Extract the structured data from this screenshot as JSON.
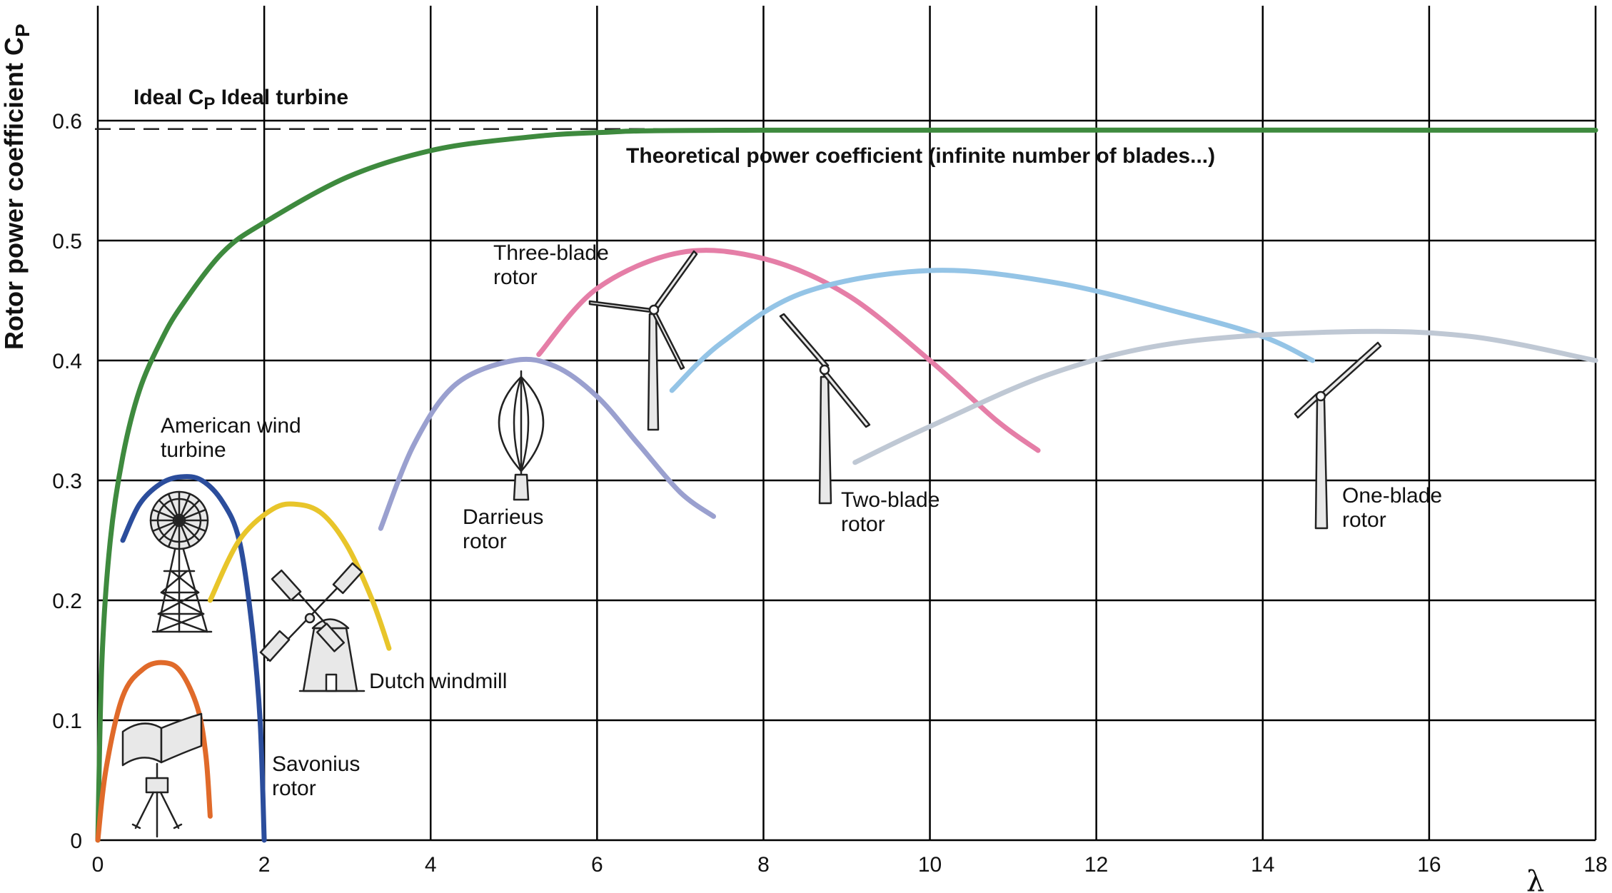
{
  "chart_data": {
    "type": "line",
    "ylabel": "Rotor power coefficient C",
    "ylabel_sub": "P",
    "xlabel": "λ",
    "xlim": [
      0,
      18
    ],
    "ylim": [
      0,
      0.6
    ],
    "xticks": [
      "0",
      "2",
      "4",
      "6",
      "8",
      "10",
      "12",
      "14",
      "16",
      "18"
    ],
    "yticks": [
      "0",
      "0.1",
      "0.2",
      "0.3",
      "0.4",
      "0.5",
      "0.6"
    ],
    "grid": true,
    "ideal_cp": 0.593,
    "ideal_label": {
      "a": "Ideal C",
      "sub": "P",
      "b": " Ideal turbine"
    },
    "series": [
      {
        "name": "Theoretical power coefficient (infinite number of blades...)",
        "color": "#3e8a3e",
        "points": [
          [
            0,
            0
          ],
          [
            0.05,
            0.15
          ],
          [
            0.15,
            0.25
          ],
          [
            0.3,
            0.32
          ],
          [
            0.5,
            0.375
          ],
          [
            0.75,
            0.415
          ],
          [
            1,
            0.445
          ],
          [
            1.5,
            0.49
          ],
          [
            2,
            0.515
          ],
          [
            3,
            0.553
          ],
          [
            4,
            0.575
          ],
          [
            5,
            0.585
          ],
          [
            6,
            0.59
          ],
          [
            8,
            0.592
          ],
          [
            18,
            0.592
          ]
        ]
      },
      {
        "name": "American wind turbine",
        "color": "#2b4d9c",
        "points": [
          [
            0.3,
            0.25
          ],
          [
            0.5,
            0.28
          ],
          [
            0.75,
            0.297
          ],
          [
            1,
            0.303
          ],
          [
            1.25,
            0.3
          ],
          [
            1.5,
            0.282
          ],
          [
            1.7,
            0.25
          ],
          [
            1.85,
            0.18
          ],
          [
            1.95,
            0.1
          ],
          [
            2,
            0
          ]
        ]
      },
      {
        "name": "Savonius rotor",
        "color": "#e06a2a",
        "points": [
          [
            0,
            0
          ],
          [
            0.1,
            0.06
          ],
          [
            0.3,
            0.12
          ],
          [
            0.55,
            0.143
          ],
          [
            0.8,
            0.148
          ],
          [
            1.0,
            0.14
          ],
          [
            1.2,
            0.11
          ],
          [
            1.3,
            0.07
          ],
          [
            1.35,
            0.02
          ]
        ]
      },
      {
        "name": "Dutch windmill",
        "color": "#e8c52a",
        "points": [
          [
            1.35,
            0.2
          ],
          [
            1.7,
            0.25
          ],
          [
            2.1,
            0.276
          ],
          [
            2.4,
            0.28
          ],
          [
            2.7,
            0.272
          ],
          [
            3.0,
            0.245
          ],
          [
            3.3,
            0.2
          ],
          [
            3.5,
            0.16
          ]
        ]
      },
      {
        "name": "Darrieus rotor",
        "color": "#9aa0cf",
        "points": [
          [
            3.4,
            0.26
          ],
          [
            3.8,
            0.33
          ],
          [
            4.3,
            0.38
          ],
          [
            5.0,
            0.4
          ],
          [
            5.5,
            0.395
          ],
          [
            6.0,
            0.37
          ],
          [
            6.5,
            0.33
          ],
          [
            7.0,
            0.29
          ],
          [
            7.4,
            0.27
          ]
        ]
      },
      {
        "name": "Three-blade rotor",
        "color": "#e57ea7",
        "points": [
          [
            5.3,
            0.405
          ],
          [
            6.0,
            0.46
          ],
          [
            7.0,
            0.49
          ],
          [
            8.0,
            0.485
          ],
          [
            9.0,
            0.455
          ],
          [
            10.0,
            0.4
          ],
          [
            10.8,
            0.35
          ],
          [
            11.3,
            0.325
          ]
        ]
      },
      {
        "name": "Two-blade rotor",
        "color": "#94c4e6",
        "points": [
          [
            6.9,
            0.375
          ],
          [
            7.5,
            0.415
          ],
          [
            8.5,
            0.457
          ],
          [
            10.0,
            0.475
          ],
          [
            11.5,
            0.465
          ],
          [
            13.0,
            0.44
          ],
          [
            14.0,
            0.42
          ],
          [
            14.6,
            0.4
          ]
        ]
      },
      {
        "name": "One-blade rotor",
        "color": "#bfc8d4",
        "points": [
          [
            9.1,
            0.315
          ],
          [
            10.0,
            0.345
          ],
          [
            11.5,
            0.39
          ],
          [
            13.0,
            0.415
          ],
          [
            15.0,
            0.424
          ],
          [
            16.5,
            0.42
          ],
          [
            18.0,
            0.4
          ]
        ]
      }
    ],
    "annotations": {
      "theoretical": "Theoretical power coefficient (infinite number of blades...)",
      "american": [
        "American wind",
        "turbine"
      ],
      "savonius": [
        "Savonius",
        "rotor"
      ],
      "dutch": "Dutch windmill",
      "darrieus": [
        "Darrieus",
        "rotor"
      ],
      "three_blade": [
        "Three-blade",
        "rotor"
      ],
      "two_blade": [
        "Two-blade",
        "rotor"
      ],
      "one_blade": [
        "One-blade",
        "rotor"
      ]
    },
    "icons": [
      "american-windmill-icon",
      "savonius-rotor-icon",
      "dutch-windmill-icon",
      "darrieus-rotor-icon",
      "three-blade-turbine-icon",
      "two-blade-turbine-icon",
      "one-blade-turbine-icon"
    ]
  }
}
